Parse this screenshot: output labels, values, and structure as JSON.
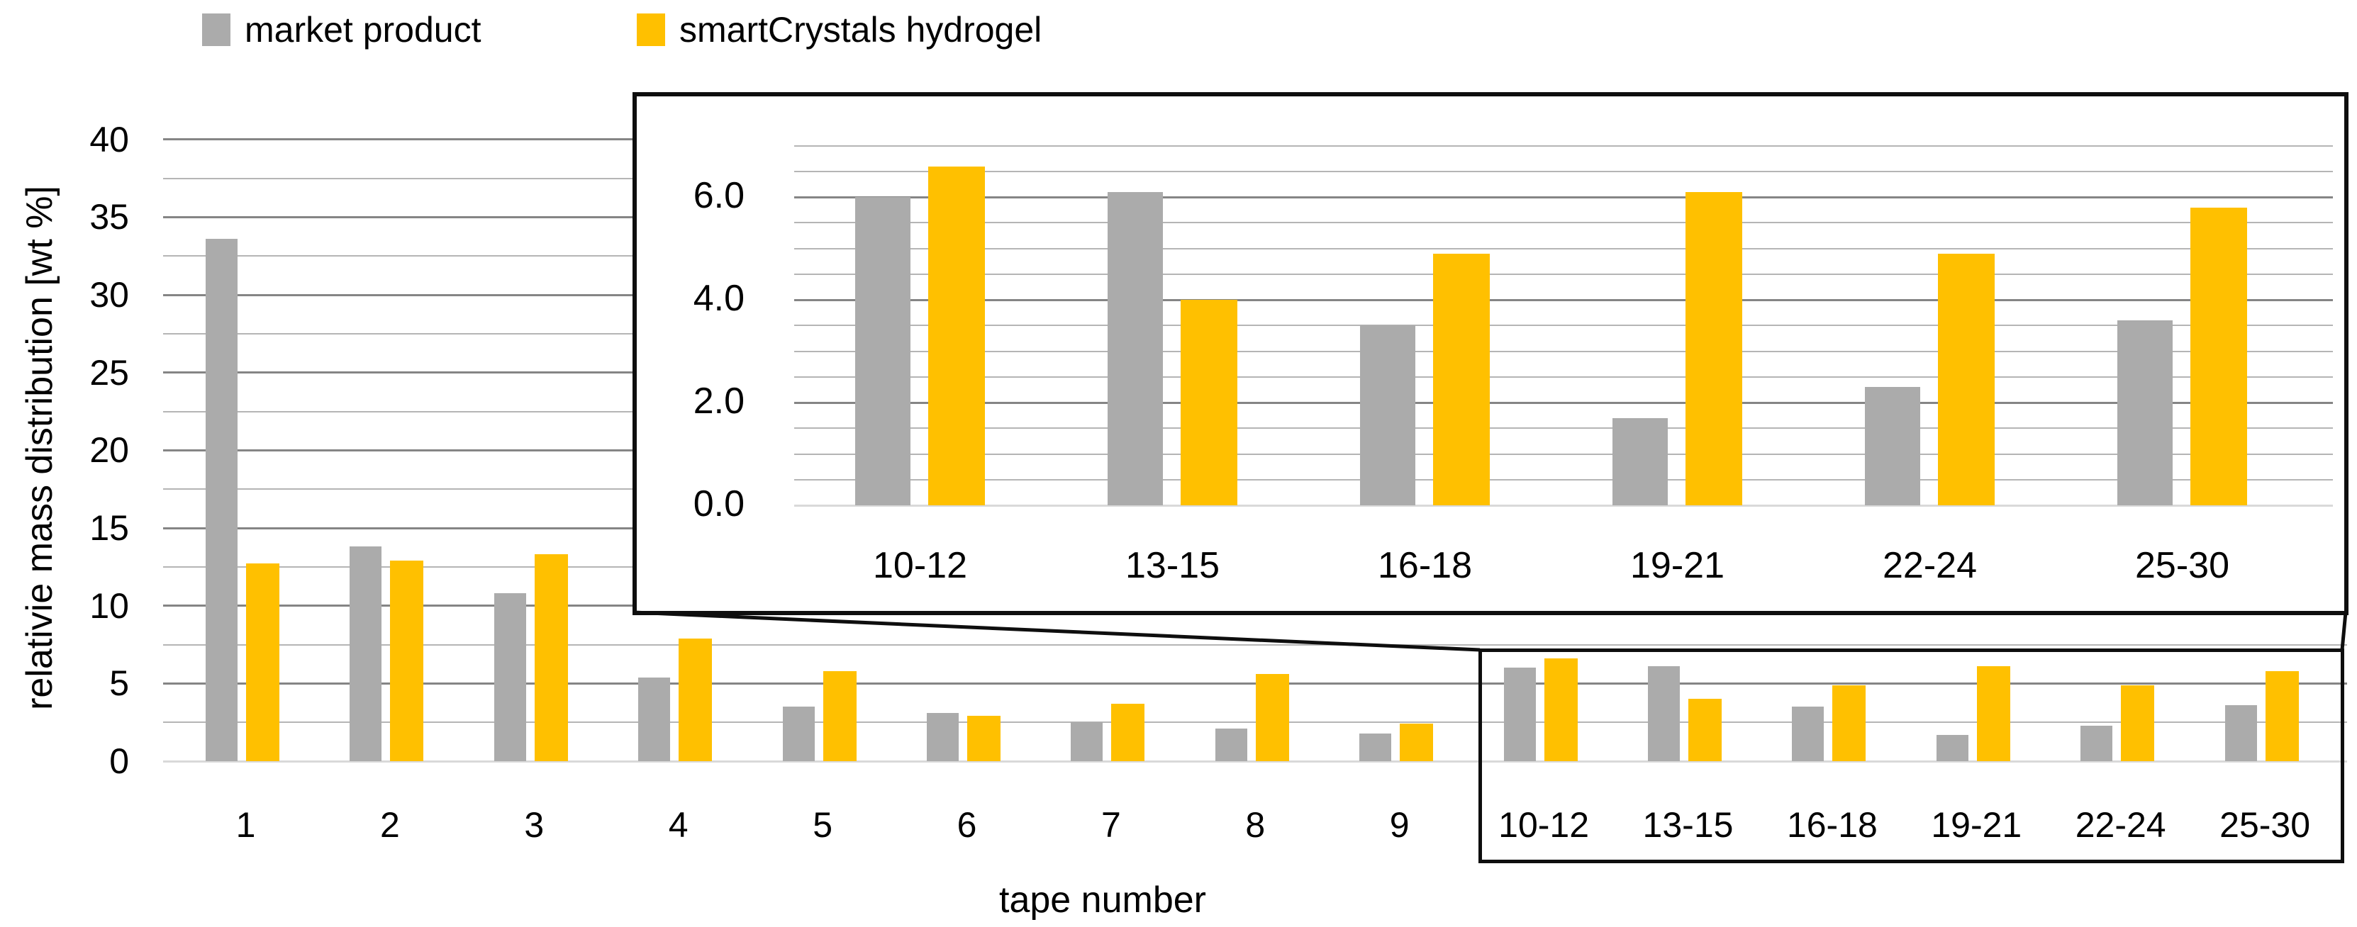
{
  "legend": {
    "items": [
      {
        "label": "market product",
        "color": "#ababab"
      },
      {
        "label": "smartCrystals hydrogel",
        "color": "#ffc000"
      }
    ]
  },
  "axes": {
    "y_title": "relativie mass distribution [wt %]",
    "x_title": "tape number",
    "y_ticks": [
      "40",
      "35",
      "30",
      "25",
      "20",
      "15",
      "10",
      "5",
      "0"
    ]
  },
  "chart_data": {
    "type": "bar",
    "title": "",
    "xlabel": "tape number",
    "ylabel": "relativie mass distribution [wt %]",
    "ylim": [
      0,
      40
    ],
    "grid_step": 2.5,
    "major_grid_step": 5,
    "legend_position": "top",
    "categories": [
      "1",
      "2",
      "3",
      "4",
      "5",
      "6",
      "7",
      "8",
      "9",
      "10-12",
      "13-15",
      "16-18",
      "19-21",
      "22-24",
      "25-30"
    ],
    "series": [
      {
        "name": "market product",
        "color": "#ababab",
        "values": [
          33.6,
          13.8,
          10.8,
          5.4,
          3.5,
          3.1,
          2.5,
          2.1,
          1.8,
          6.0,
          6.1,
          3.5,
          1.7,
          2.3,
          3.6
        ]
      },
      {
        "name": "smartCrystals hydrogel",
        "color": "#ffc000",
        "values": [
          12.7,
          12.9,
          13.3,
          7.9,
          5.8,
          2.9,
          3.7,
          5.6,
          2.4,
          6.6,
          4.0,
          4.9,
          6.1,
          4.9,
          5.8
        ]
      }
    ],
    "inset": {
      "type": "bar",
      "description": "zoom of tapes 10-30",
      "ylim": [
        0,
        7
      ],
      "grid_step": 0.5,
      "major_grid_step": 2,
      "y_tick_labels": [
        "6.0",
        "4.0",
        "2.0",
        "0.0"
      ],
      "y_tick_values": [
        6,
        4,
        2,
        0
      ],
      "categories": [
        "10-12",
        "13-15",
        "16-18",
        "19-21",
        "22-24",
        "25-30"
      ],
      "series": [
        {
          "name": "market product",
          "color": "#ababab",
          "values": [
            6.0,
            6.1,
            3.5,
            1.7,
            2.3,
            3.6
          ]
        },
        {
          "name": "smartCrystals hydrogel",
          "color": "#ffc000",
          "values": [
            6.6,
            4.0,
            4.9,
            6.1,
            4.9,
            5.8
          ]
        }
      ]
    }
  }
}
